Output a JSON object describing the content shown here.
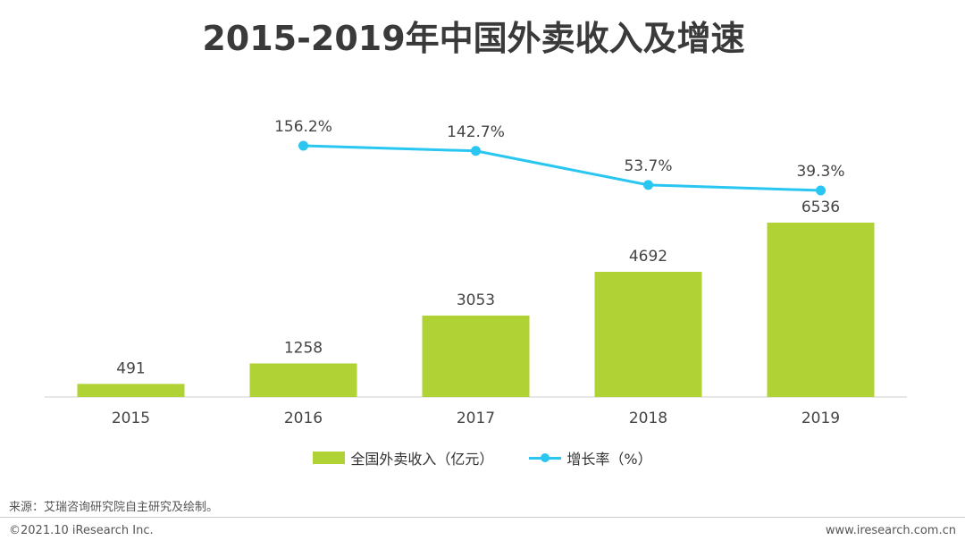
{
  "chart_data": {
    "type": "bar+line",
    "title": "2015-2019年中国外卖收入及增速",
    "categories": [
      "2015",
      "2016",
      "2017",
      "2018",
      "2019"
    ],
    "series": [
      {
        "name": "全国外卖收入（亿元）",
        "type": "bar",
        "color": "#b1d235",
        "values": [
          491,
          1258,
          3053,
          4692,
          6536
        ],
        "labels": [
          "491",
          "1258",
          "3053",
          "4692",
          "6536"
        ]
      },
      {
        "name": "增长率（%）",
        "type": "line",
        "color": "#28c6f0",
        "values": [
          null,
          156.2,
          142.7,
          53.7,
          39.3
        ],
        "labels": [
          "",
          "156.2%",
          "142.7%",
          "53.7%",
          "39.3%"
        ]
      }
    ],
    "legend": "bottom",
    "grid": false
  },
  "source": "来源：艾瑞咨询研究院自主研究及绘制。",
  "copyright": "©2021.10 iResearch Inc.",
  "website": "www.iresearch.com.cn"
}
